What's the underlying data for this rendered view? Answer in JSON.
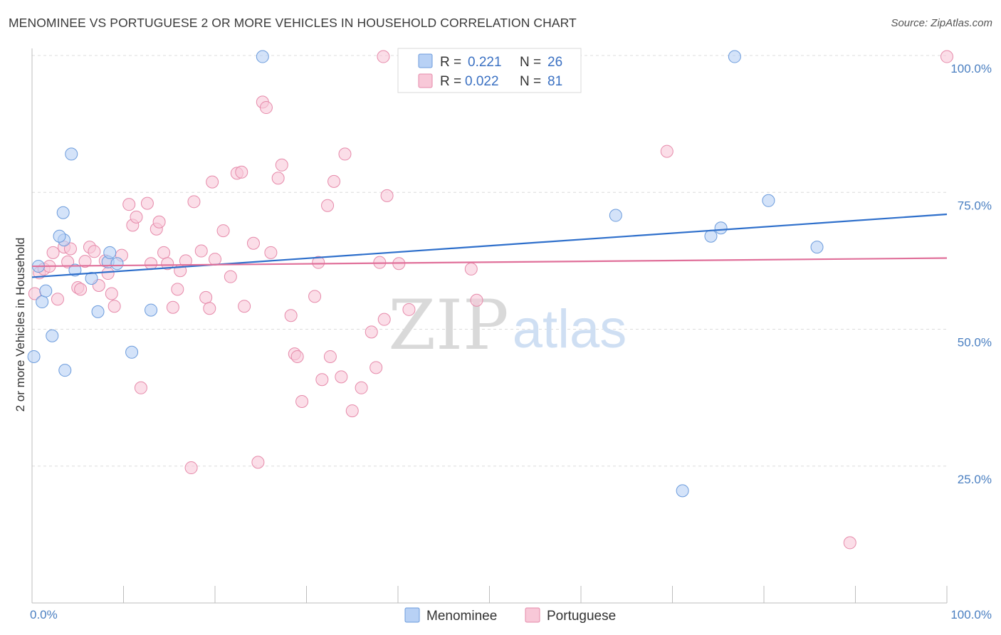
{
  "title": "MENOMINEE VS PORTUGUESE 2 OR MORE VEHICLES IN HOUSEHOLD CORRELATION CHART",
  "source": "Source: ZipAtlas.com",
  "watermark": {
    "zip": "ZIP",
    "atlas": "atlas"
  },
  "colors": {
    "menominee_fill": "#b8d1f5",
    "menominee_stroke": "#6b9bdc",
    "menominee_line": "#2e6fcb",
    "portuguese_fill": "#f8c8d8",
    "portuguese_stroke": "#e68aaa",
    "portuguese_line": "#e0709a",
    "grid": "#dcdcdc",
    "tick": "#4a7fc1"
  },
  "legend": {
    "rows": [
      {
        "r_label": "R =",
        "r_value": "0.221",
        "n_label": "N =",
        "n_value": "26"
      },
      {
        "r_label": "R =",
        "r_value": "0.022",
        "n_label": "N =",
        "n_value": "81"
      }
    ]
  },
  "chart_data": {
    "type": "scatter",
    "xlabel": "",
    "ylabel": "2 or more Vehicles in Household",
    "xlim": [
      0,
      100
    ],
    "ylim": [
      0,
      100
    ],
    "x_tick_labels": [
      "0.0%",
      "100.0%"
    ],
    "y_ticks": [
      {
        "value": 100,
        "label": "100.0%"
      },
      {
        "value": 75,
        "label": "75.0%"
      },
      {
        "value": 50,
        "label": "50.0%"
      },
      {
        "value": 25,
        "label": "25.0%"
      }
    ],
    "grid": true,
    "legend_placement": "top-center",
    "series": [
      {
        "name": "Menominee",
        "trend": {
          "x": [
            0,
            100
          ],
          "y": [
            59.5,
            71.0
          ]
        },
        "points": [
          [
            0.2,
            45.0
          ],
          [
            0.7,
            61.5
          ],
          [
            1.1,
            55.0
          ],
          [
            1.5,
            57.0
          ],
          [
            2.2,
            48.8
          ],
          [
            3.5,
            66.3
          ],
          [
            3.0,
            67.0
          ],
          [
            3.4,
            71.3
          ],
          [
            3.6,
            42.5
          ],
          [
            4.3,
            82.0
          ],
          [
            4.7,
            60.8
          ],
          [
            6.5,
            59.3
          ],
          [
            7.2,
            53.2
          ],
          [
            8.3,
            62.3
          ],
          [
            8.5,
            64.0
          ],
          [
            9.3,
            62.0
          ],
          [
            10.9,
            45.8
          ],
          [
            13.0,
            53.5
          ],
          [
            25.2,
            99.8
          ],
          [
            63.8,
            70.8
          ],
          [
            71.1,
            20.5
          ],
          [
            74.2,
            67.0
          ],
          [
            75.3,
            68.5
          ],
          [
            76.8,
            99.8
          ],
          [
            80.5,
            73.5
          ],
          [
            85.8,
            65.0
          ]
        ]
      },
      {
        "name": "Portuguese",
        "trend": {
          "x": [
            0,
            100
          ],
          "y": [
            61.5,
            63.0
          ]
        },
        "points": [
          [
            0.3,
            56.5
          ],
          [
            0.8,
            60.3
          ],
          [
            1.3,
            61.0
          ],
          [
            1.9,
            61.5
          ],
          [
            2.3,
            64.0
          ],
          [
            2.8,
            55.5
          ],
          [
            3.5,
            65.0
          ],
          [
            3.9,
            62.3
          ],
          [
            4.2,
            64.7
          ],
          [
            5.0,
            57.6
          ],
          [
            5.3,
            57.3
          ],
          [
            5.8,
            62.4
          ],
          [
            6.3,
            65.0
          ],
          [
            6.8,
            64.2
          ],
          [
            7.3,
            58.0
          ],
          [
            8.0,
            62.5
          ],
          [
            8.3,
            60.2
          ],
          [
            8.7,
            56.5
          ],
          [
            9.0,
            54.2
          ],
          [
            9.8,
            63.5
          ],
          [
            10.6,
            72.8
          ],
          [
            11.0,
            69.0
          ],
          [
            11.4,
            70.5
          ],
          [
            11.9,
            39.3
          ],
          [
            12.6,
            73.0
          ],
          [
            13.0,
            62.0
          ],
          [
            13.6,
            68.3
          ],
          [
            13.9,
            69.6
          ],
          [
            14.4,
            64.0
          ],
          [
            14.8,
            62.0
          ],
          [
            15.4,
            54.0
          ],
          [
            15.9,
            57.3
          ],
          [
            16.2,
            60.7
          ],
          [
            16.8,
            62.5
          ],
          [
            17.4,
            24.7
          ],
          [
            17.7,
            73.3
          ],
          [
            18.5,
            64.3
          ],
          [
            19.0,
            55.8
          ],
          [
            19.4,
            53.8
          ],
          [
            19.7,
            76.9
          ],
          [
            20.0,
            62.8
          ],
          [
            20.9,
            68.0
          ],
          [
            21.7,
            59.6
          ],
          [
            22.4,
            78.5
          ],
          [
            22.9,
            78.7
          ],
          [
            23.2,
            54.2
          ],
          [
            24.2,
            65.7
          ],
          [
            24.7,
            25.7
          ],
          [
            25.2,
            91.5
          ],
          [
            25.6,
            90.5
          ],
          [
            26.1,
            64.0
          ],
          [
            26.9,
            77.6
          ],
          [
            27.3,
            80.0
          ],
          [
            28.3,
            52.5
          ],
          [
            28.7,
            45.5
          ],
          [
            29.0,
            45.0
          ],
          [
            29.5,
            36.8
          ],
          [
            30.9,
            56.0
          ],
          [
            31.3,
            62.2
          ],
          [
            31.7,
            40.8
          ],
          [
            32.3,
            72.6
          ],
          [
            32.6,
            45.0
          ],
          [
            33.0,
            77.0
          ],
          [
            33.8,
            41.3
          ],
          [
            34.2,
            82.0
          ],
          [
            35.0,
            35.1
          ],
          [
            36.0,
            39.3
          ],
          [
            37.1,
            49.5
          ],
          [
            37.6,
            43.0
          ],
          [
            38.0,
            62.2
          ],
          [
            38.5,
            51.8
          ],
          [
            38.8,
            74.4
          ],
          [
            40.1,
            62.0
          ],
          [
            41.2,
            53.6
          ],
          [
            41.5,
            99.8
          ],
          [
            48.0,
            61.0
          ],
          [
            48.6,
            55.3
          ],
          [
            69.4,
            82.5
          ],
          [
            89.4,
            11.0
          ],
          [
            100.0,
            99.8
          ],
          [
            38.4,
            99.8
          ]
        ]
      }
    ]
  }
}
